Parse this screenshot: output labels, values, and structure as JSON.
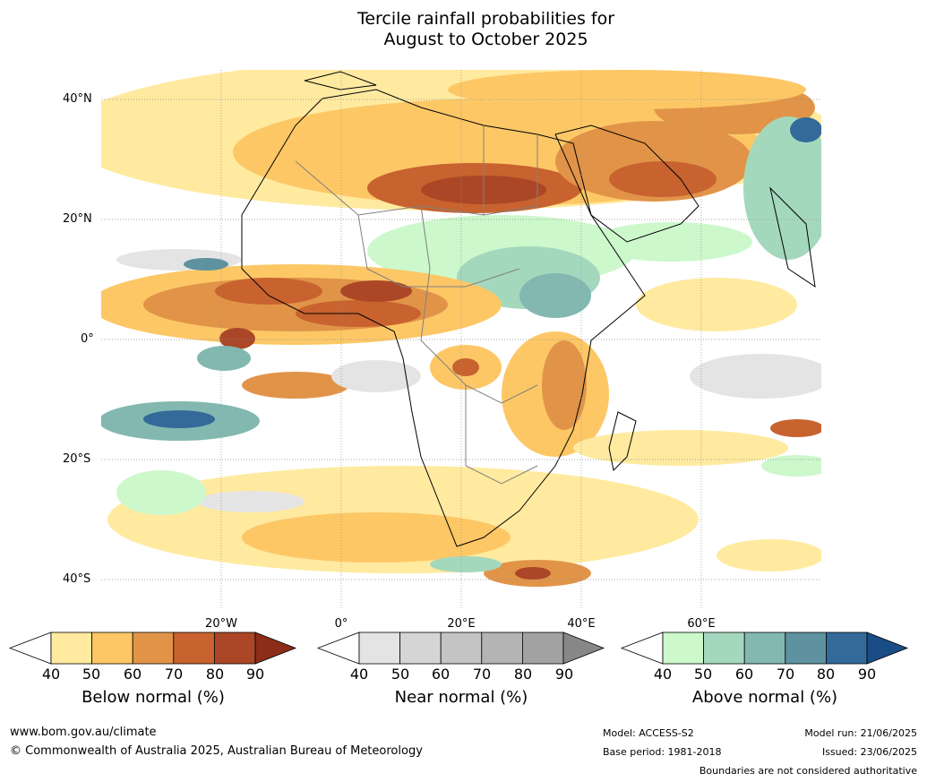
{
  "title": {
    "line1": "Tercile rainfall probabilities for",
    "line2": "August to October 2025"
  },
  "lat_labels": [
    "40°N",
    "20°N",
    "0°",
    "20°S",
    "40°S"
  ],
  "lon_labels": [
    "20°W",
    "0°",
    "20°E",
    "40°E",
    "60°E"
  ],
  "colorbars": [
    {
      "label": "Below normal (%)",
      "ticks": [
        "40",
        "50",
        "60",
        "70",
        "80",
        "90"
      ],
      "colors": [
        "#ffffff",
        "#ffeaa0",
        "#fdc766",
        "#e19448",
        "#c8632f",
        "#ab4726",
        "#8c2d18"
      ]
    },
    {
      "label": "Near normal (%)",
      "ticks": [
        "40",
        "50",
        "60",
        "70",
        "80",
        "90"
      ],
      "colors": [
        "#ffffff",
        "#e4e4e4",
        "#d5d5d5",
        "#c4c4c4",
        "#b4b4b4",
        "#a2a2a2",
        "#878787"
      ]
    },
    {
      "label": "Above normal (%)",
      "ticks": [
        "40",
        "50",
        "60",
        "70",
        "80",
        "90"
      ],
      "colors": [
        "#ffffff",
        "#ccf8cc",
        "#a4d8bd",
        "#82b8b0",
        "#5e92a0",
        "#336a99",
        "#1a4d85"
      ]
    }
  ],
  "footer": {
    "website": "www.bom.gov.au/climate",
    "copyright": "© Commonwealth of Australia 2025, Australian Bureau of Meteorology",
    "model": "Model: ACCESS-S2",
    "base_period": "Base period: 1981-2018",
    "model_run": "Model run: 21/06/2025",
    "issued": "Issued: 23/06/2025",
    "disclaimer": "Boundaries are not considered authoritative"
  }
}
